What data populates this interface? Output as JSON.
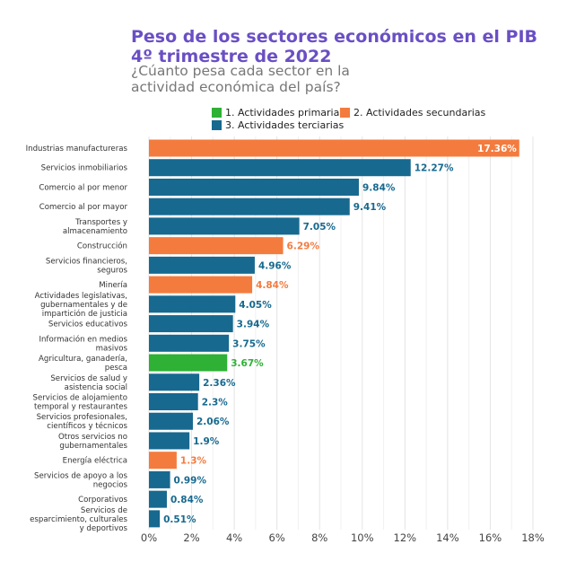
{
  "title_line1": "Peso de los sectores económicos en el PIB",
  "title_line2": "4º trimestre de 2022",
  "subtitle_line1": "¿Cúanto pesa cada sector en la",
  "subtitle_line2": "actividad económica del país?",
  "legend": [
    {
      "label": "1. Actividades primarias",
      "color": "#2eb135"
    },
    {
      "label": "2. Actividades secundarias",
      "color": "#f47b3e"
    },
    {
      "label": "3. Actividades terciarias",
      "color": "#17698f"
    }
  ],
  "chart_data": {
    "type": "bar",
    "orientation": "horizontal",
    "xlim": [
      0,
      18
    ],
    "x_ticks": [
      "0%",
      "2%",
      "4%",
      "6%",
      "8%",
      "10%",
      "12%",
      "14%",
      "16%",
      "18%"
    ],
    "x_tick_values": [
      0,
      2,
      4,
      6,
      8,
      10,
      12,
      14,
      16,
      18
    ],
    "grid": true,
    "legend_position": "top",
    "categories": [
      [
        "Industrias manufactureras"
      ],
      [
        "Servicios inmobiliarios"
      ],
      [
        "Comercio al por menor"
      ],
      [
        "Comercio al por mayor"
      ],
      [
        "Transportes y",
        "almacenamiento"
      ],
      [
        "Construcción"
      ],
      [
        "Servicios financieros,",
        "seguros"
      ],
      [
        "Minería"
      ],
      [
        "Actividades legislativas,",
        "gubernamentales y de",
        "impartición de justicia"
      ],
      [
        "Servicios educativos"
      ],
      [
        "Información en medios",
        "masivos"
      ],
      [
        "Agricultura, ganadería,",
        "pesca"
      ],
      [
        "Servicios de salud y",
        "asistencia social"
      ],
      [
        "Servicios de alojamiento",
        "temporal y restaurantes"
      ],
      [
        "Servicios profesionales,",
        "científicos y técnicos"
      ],
      [
        "Otros servicios no",
        "gubernamentales"
      ],
      [
        "Energía eléctrica"
      ],
      [
        "Servicios de apoyo a los",
        "negocios"
      ],
      [
        "Corporativos"
      ],
      [
        "Servicios de",
        "esparcimiento, culturales",
        "y deportivos"
      ]
    ],
    "values": [
      17.36,
      12.27,
      9.84,
      9.41,
      7.05,
      6.29,
      4.96,
      4.84,
      4.05,
      3.94,
      3.75,
      3.67,
      2.36,
      2.3,
      2.06,
      1.9,
      1.3,
      0.99,
      0.84,
      0.51
    ],
    "value_labels": [
      "17.36%",
      "12.27%",
      "9.84%",
      "9.41%",
      "7.05%",
      "6.29%",
      "4.96%",
      "4.84%",
      "4.05%",
      "3.94%",
      "3.75%",
      "3.67%",
      "2.36%",
      "2.3%",
      "2.06%",
      "1.9%",
      "1.3%",
      "0.99%",
      "0.84%",
      "0.51%"
    ],
    "sector_group": [
      2,
      3,
      3,
      3,
      3,
      2,
      3,
      2,
      3,
      3,
      3,
      1,
      3,
      3,
      3,
      3,
      2,
      3,
      3,
      3
    ],
    "group_colors": {
      "1": "#2eb135",
      "2": "#f47b3e",
      "3": "#17698f"
    }
  }
}
